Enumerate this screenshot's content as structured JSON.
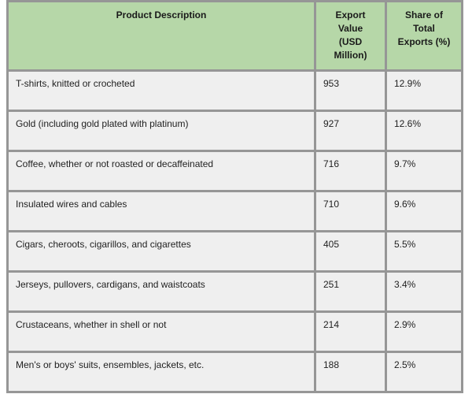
{
  "colors": {
    "header_bg": "#b6d7a8",
    "row_bg": "#efefef",
    "border": "#969696",
    "text": "#1f1f1f",
    "page_bg": "#ffffff"
  },
  "display": {
    "headers": [
      {
        "label": "Product Description"
      },
      {
        "label": "Export\nValue\n(USD\nMillion)"
      },
      {
        "label": "Share of\nTotal\nExports (%)"
      }
    ],
    "rows": [
      {
        "description": "T-shirts, knitted or crocheted",
        "value": "953",
        "share": "12.9%"
      },
      {
        "description": "Gold (including gold plated with platinum)",
        "value": "927",
        "share": "12.6%"
      },
      {
        "description": "Coffee, whether or not roasted or decaffeinated",
        "value": "716",
        "share": "9.7%"
      },
      {
        "description": "Insulated wires and cables",
        "value": "710",
        "share": "9.6%"
      },
      {
        "description": "Cigars, cheroots, cigarillos, and cigarettes",
        "value": "405",
        "share": "5.5%"
      },
      {
        "description": "Jerseys, pullovers, cardigans, and waistcoats",
        "value": "251",
        "share": "3.4%"
      },
      {
        "description": "Crustaceans, whether in shell or not",
        "value": "214",
        "share": "2.9%"
      },
      {
        "description": "Men's or boys' suits, ensembles, jackets, etc.",
        "value": "188",
        "share": "2.5%"
      }
    ]
  },
  "chart_data": {
    "type": "table",
    "columns": [
      "Product Description",
      "Export Value (USD Million)",
      "Share of Total Exports (%)"
    ],
    "rows": [
      [
        "T-shirts, knitted or crocheted",
        953,
        "12.9%"
      ],
      [
        "Gold (including gold plated with platinum)",
        927,
        "12.6%"
      ],
      [
        "Coffee, whether or not roasted or decaffeinated",
        716,
        "9.7%"
      ],
      [
        "Insulated wires and cables",
        710,
        "9.6%"
      ],
      [
        "Cigars, cheroots, cigarillos, and cigarettes",
        405,
        "5.5%"
      ],
      [
        "Jerseys, pullovers, cardigans, and waistcoats",
        251,
        "3.4%"
      ],
      [
        "Crustaceans, whether in shell or not",
        214,
        "2.9%"
      ],
      [
        "Men's or boys' suits, ensembles, jackets, etc.",
        188,
        "2.5%"
      ]
    ]
  }
}
